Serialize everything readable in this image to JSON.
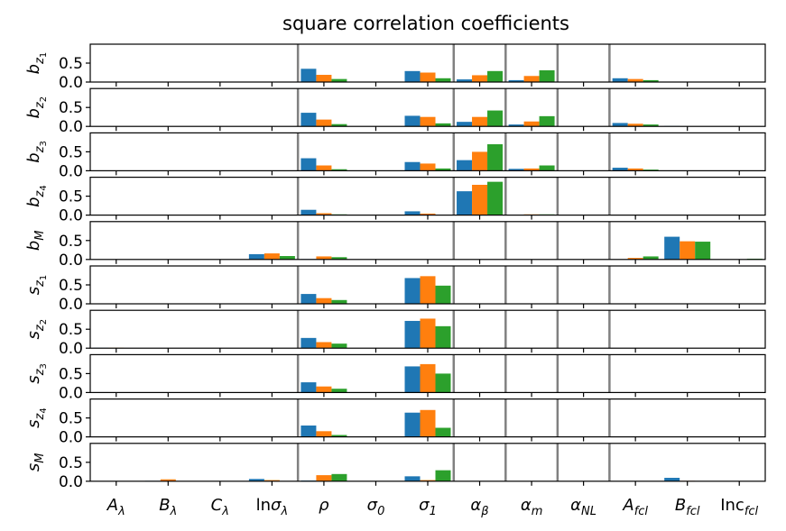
{
  "chart_data": {
    "type": "bar",
    "title": "square correlation coefficients",
    "ylim": [
      0,
      1
    ],
    "yticks": [
      "0.0",
      "0.5"
    ],
    "categories": [
      {
        "base": "A",
        "sub": "λ",
        "ital": true
      },
      {
        "base": "B",
        "sub": "λ",
        "ital": true
      },
      {
        "base": "C",
        "sub": "λ",
        "ital": true
      },
      {
        "base": "ln",
        "base2": "σ",
        "sub": "λ",
        "ital": false
      },
      {
        "base": "ρ",
        "sub": "",
        "ital": true
      },
      {
        "base": "σ",
        "sub": "0",
        "ital": true
      },
      {
        "base": "σ",
        "sub": "1",
        "ital": true
      },
      {
        "base": "α",
        "sub": "β",
        "ital": true
      },
      {
        "base": "α",
        "sub": "m",
        "ital": true
      },
      {
        "base": "α",
        "sub": "NL",
        "ital": true
      },
      {
        "base": "A",
        "sub": "fcl",
        "ital": true
      },
      {
        "base": "B",
        "sub": "fcl",
        "ital": true
      },
      {
        "base": "Inc",
        "sub": "fcl",
        "ital": false
      }
    ],
    "separators_after_category": [
      3,
      6,
      7,
      8,
      9
    ],
    "series_colors": [
      "#1f77b4",
      "#ff7f0e",
      "#2ca02c"
    ],
    "panels": [
      {
        "label": "b",
        "sub": "z",
        "subsub": "1",
        "values": [
          [
            0,
            0,
            0
          ],
          [
            0,
            0,
            0
          ],
          [
            0,
            0,
            0
          ],
          [
            0,
            0,
            0
          ],
          [
            0.35,
            0.19,
            0.08
          ],
          [
            0,
            0,
            0
          ],
          [
            0.29,
            0.25,
            0.1
          ],
          [
            0.07,
            0.18,
            0.29
          ],
          [
            0.05,
            0.16,
            0.31
          ],
          [
            0,
            0,
            0
          ],
          [
            0.1,
            0.08,
            0.05
          ],
          [
            0.01,
            0.01,
            0
          ],
          [
            0,
            0,
            0
          ]
        ]
      },
      {
        "label": "b",
        "sub": "z",
        "subsub": "2",
        "values": [
          [
            0,
            0,
            0
          ],
          [
            0,
            0,
            0
          ],
          [
            0,
            0,
            0
          ],
          [
            0,
            0,
            0
          ],
          [
            0.36,
            0.18,
            0.06
          ],
          [
            0,
            0,
            0
          ],
          [
            0.28,
            0.25,
            0.08
          ],
          [
            0.12,
            0.25,
            0.42
          ],
          [
            0.05,
            0.13,
            0.27
          ],
          [
            0,
            0,
            0
          ],
          [
            0.09,
            0.07,
            0.05
          ],
          [
            0.01,
            0,
            0
          ],
          [
            0,
            0,
            0
          ]
        ]
      },
      {
        "label": "b",
        "sub": "z",
        "subsub": "3",
        "values": [
          [
            0,
            0,
            0
          ],
          [
            0,
            0,
            0
          ],
          [
            0,
            0,
            0
          ],
          [
            0,
            0,
            0
          ],
          [
            0.33,
            0.14,
            0.04
          ],
          [
            0,
            0,
            0
          ],
          [
            0.23,
            0.19,
            0.06
          ],
          [
            0.28,
            0.5,
            0.7
          ],
          [
            0.05,
            0.06,
            0.14
          ],
          [
            0,
            0,
            0
          ],
          [
            0.08,
            0.06,
            0.03
          ],
          [
            0,
            0,
            0
          ],
          [
            0,
            0,
            0
          ]
        ]
      },
      {
        "label": "b",
        "sub": "z",
        "subsub": "4",
        "values": [
          [
            0,
            0,
            0
          ],
          [
            0,
            0,
            0
          ],
          [
            0,
            0,
            0
          ],
          [
            0,
            0,
            0
          ],
          [
            0.14,
            0.05,
            0.02
          ],
          [
            0,
            0,
            0
          ],
          [
            0.1,
            0.04,
            0.01
          ],
          [
            0.63,
            0.8,
            0.88
          ],
          [
            0.01,
            0.02,
            0.02
          ],
          [
            0,
            0,
            0
          ],
          [
            0.01,
            0,
            0
          ],
          [
            0,
            0,
            0
          ],
          [
            0,
            0,
            0
          ]
        ]
      },
      {
        "label": "b",
        "sub": "M",
        "subsub": "",
        "values": [
          [
            0,
            0,
            0
          ],
          [
            0,
            0,
            0
          ],
          [
            0,
            0,
            0
          ],
          [
            0.14,
            0.16,
            0.09
          ],
          [
            0.01,
            0.08,
            0.06
          ],
          [
            0,
            0,
            0
          ],
          [
            0,
            0,
            0
          ],
          [
            0,
            0,
            0
          ],
          [
            0,
            0,
            0
          ],
          [
            0,
            0,
            0
          ],
          [
            0,
            0.04,
            0.08
          ],
          [
            0.6,
            0.48,
            0.47
          ],
          [
            0,
            0,
            0.02
          ]
        ]
      },
      {
        "label": "s",
        "sub": "z",
        "subsub": "1",
        "values": [
          [
            0,
            0,
            0
          ],
          [
            0,
            0,
            0
          ],
          [
            0,
            0,
            0
          ],
          [
            0,
            0,
            0
          ],
          [
            0.26,
            0.15,
            0.1
          ],
          [
            0,
            0,
            0
          ],
          [
            0.68,
            0.73,
            0.48
          ],
          [
            0,
            0,
            0
          ],
          [
            0,
            0,
            0
          ],
          [
            0,
            0,
            0
          ],
          [
            0,
            0,
            0
          ],
          [
            0,
            0,
            0
          ],
          [
            0,
            0,
            0
          ]
        ]
      },
      {
        "label": "s",
        "sub": "z",
        "subsub": "2",
        "values": [
          [
            0.01,
            0.01,
            0
          ],
          [
            0,
            0,
            0
          ],
          [
            0,
            0,
            0
          ],
          [
            0,
            0,
            0
          ],
          [
            0.27,
            0.16,
            0.12
          ],
          [
            0,
            0,
            0
          ],
          [
            0.72,
            0.78,
            0.58
          ],
          [
            0,
            0,
            0
          ],
          [
            0,
            0,
            0
          ],
          [
            0,
            0,
            0
          ],
          [
            0,
            0,
            0
          ],
          [
            0,
            0,
            0
          ],
          [
            0,
            0,
            0
          ]
        ]
      },
      {
        "label": "s",
        "sub": "z",
        "subsub": "3",
        "values": [
          [
            0.01,
            0,
            0
          ],
          [
            0,
            0,
            0
          ],
          [
            0,
            0,
            0
          ],
          [
            0,
            0,
            0
          ],
          [
            0.27,
            0.16,
            0.1
          ],
          [
            0,
            0,
            0
          ],
          [
            0.69,
            0.75,
            0.5
          ],
          [
            0,
            0,
            0
          ],
          [
            0,
            0,
            0
          ],
          [
            0,
            0,
            0
          ],
          [
            0,
            0,
            0
          ],
          [
            0,
            0,
            0
          ],
          [
            0,
            0,
            0
          ]
        ]
      },
      {
        "label": "s",
        "sub": "z",
        "subsub": "4",
        "values": [
          [
            0,
            0,
            0
          ],
          [
            0,
            0,
            0
          ],
          [
            0,
            0,
            0
          ],
          [
            0,
            0,
            0
          ],
          [
            0.3,
            0.15,
            0.05
          ],
          [
            0,
            0,
            0
          ],
          [
            0.64,
            0.71,
            0.24
          ],
          [
            0,
            0,
            0
          ],
          [
            0,
            0,
            0
          ],
          [
            0,
            0,
            0
          ],
          [
            0,
            0,
            0
          ],
          [
            0,
            0,
            0
          ],
          [
            0,
            0,
            0
          ]
        ]
      },
      {
        "label": "s",
        "sub": "M",
        "subsub": "",
        "values": [
          [
            0,
            0,
            0
          ],
          [
            0.01,
            0.05,
            0
          ],
          [
            0,
            0,
            0
          ],
          [
            0.06,
            0.03,
            0
          ],
          [
            0.02,
            0.16,
            0.19
          ],
          [
            0,
            0,
            0
          ],
          [
            0.13,
            0.03,
            0.29
          ],
          [
            0,
            0,
            0
          ],
          [
            0,
            0,
            0
          ],
          [
            0,
            0,
            0
          ],
          [
            0,
            0,
            0
          ],
          [
            0.09,
            0.01,
            0
          ],
          [
            0,
            0,
            0
          ]
        ]
      }
    ]
  }
}
